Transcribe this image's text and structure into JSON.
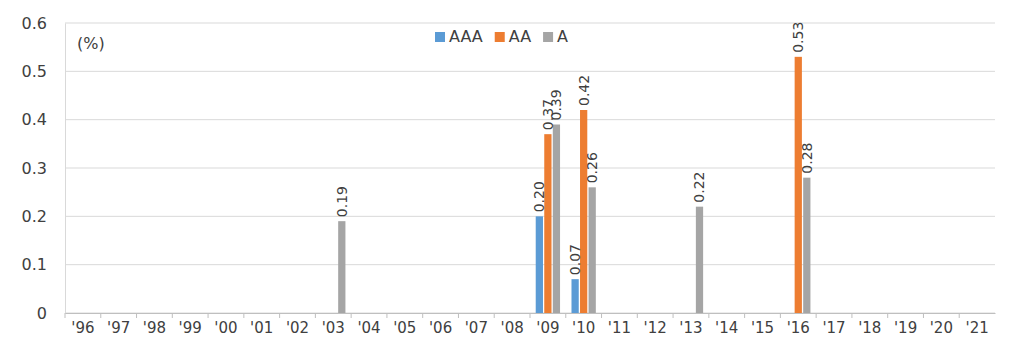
{
  "chart_data": {
    "type": "bar",
    "y_label": "(%)",
    "categories": [
      "'96",
      "'97",
      "'98",
      "'99",
      "'00",
      "'01",
      "'02",
      "'03",
      "'04",
      "'05",
      "'06",
      "'07",
      "'08",
      "'09",
      "'10",
      "'11",
      "'12",
      "'13",
      "'14",
      "'15",
      "'16",
      "'17",
      "'18",
      "'19",
      "'20",
      "'21"
    ],
    "series": [
      {
        "name": "AAA",
        "color": "#5b9bd5",
        "values": [
          null,
          null,
          null,
          null,
          null,
          null,
          null,
          null,
          null,
          null,
          null,
          null,
          null,
          0.2,
          0.07,
          null,
          null,
          null,
          null,
          null,
          null,
          null,
          null,
          null,
          null,
          null
        ],
        "value_labels": [
          null,
          null,
          null,
          null,
          null,
          null,
          null,
          null,
          null,
          null,
          null,
          null,
          null,
          "0.20",
          "0.07",
          null,
          null,
          null,
          null,
          null,
          null,
          null,
          null,
          null,
          null,
          null
        ]
      },
      {
        "name": "AA",
        "color": "#ed7d31",
        "values": [
          null,
          null,
          null,
          null,
          null,
          null,
          null,
          null,
          null,
          null,
          null,
          null,
          null,
          0.37,
          0.42,
          null,
          null,
          null,
          null,
          null,
          0.53,
          null,
          null,
          null,
          null,
          null
        ],
        "value_labels": [
          null,
          null,
          null,
          null,
          null,
          null,
          null,
          null,
          null,
          null,
          null,
          null,
          null,
          "0.37",
          "0.42",
          null,
          null,
          null,
          null,
          null,
          "0.53",
          null,
          null,
          null,
          null,
          null
        ]
      },
      {
        "name": "A",
        "color": "#a5a5a5",
        "values": [
          null,
          null,
          null,
          null,
          null,
          null,
          null,
          0.19,
          null,
          null,
          null,
          null,
          null,
          0.39,
          0.26,
          null,
          null,
          0.22,
          null,
          null,
          0.28,
          null,
          null,
          null,
          null,
          null
        ],
        "value_labels": [
          null,
          null,
          null,
          null,
          null,
          null,
          null,
          "0.19",
          null,
          null,
          null,
          null,
          null,
          "0.39",
          "0.26",
          null,
          null,
          "0.22",
          null,
          null,
          "0.28",
          null,
          null,
          null,
          null,
          null
        ]
      }
    ],
    "ylim": [
      0,
      0.6
    ],
    "yticks": [
      0,
      0.1,
      0.2,
      0.3,
      0.4,
      0.5,
      0.6
    ],
    "grid": true,
    "legend": "top",
    "data_labels": true
  }
}
